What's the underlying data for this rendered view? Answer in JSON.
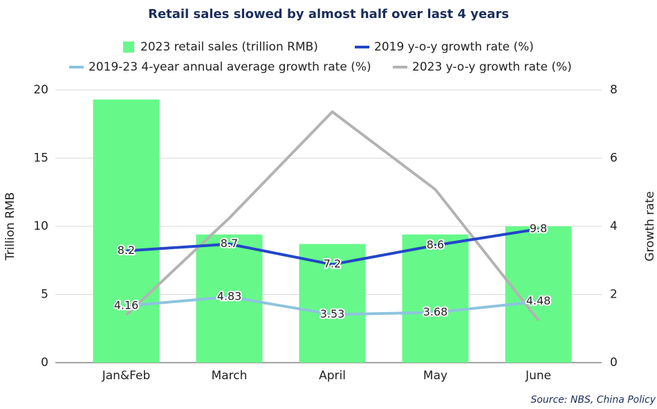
{
  "chart_data": {
    "type": "bar",
    "title": "Retail sales slowed by almost half over last 4 years",
    "categories": [
      "Jan&Feb",
      "March",
      "April",
      "May",
      "June"
    ],
    "series": [
      {
        "name": "2023 retail sales (trillion RMB)",
        "type": "bar",
        "color": "#66f98a",
        "values": [
          19.3,
          9.4,
          8.7,
          9.4,
          10.0
        ]
      },
      {
        "name": "2019 y-o-y growth rate (%)",
        "type": "line",
        "color": "#2346c8",
        "values": [
          8.2,
          8.7,
          7.2,
          8.6,
          9.8
        ],
        "data_labels": true
      },
      {
        "name": "2019-23 4-year annual average growth rate (%)",
        "type": "line",
        "color": "#8ec3de",
        "values": [
          4.16,
          4.83,
          3.53,
          3.68,
          4.48
        ],
        "data_labels": true
      },
      {
        "name": "2023 y-o-y growth rate (%)",
        "type": "line",
        "color": "#b3b3b3",
        "values": [
          3.5,
          10.6,
          18.4,
          12.7,
          3.1
        ]
      }
    ],
    "ylabel": "Trillion RMB",
    "y2label": "Growth rate",
    "ylim": [
      0,
      20
    ],
    "yticks": [
      0,
      5,
      10,
      15,
      20
    ],
    "y2lim": [
      0,
      8
    ],
    "y2ticks": [
      0,
      2,
      4,
      6,
      8
    ],
    "grid": true,
    "source": "Source: NBS, China Policy"
  }
}
